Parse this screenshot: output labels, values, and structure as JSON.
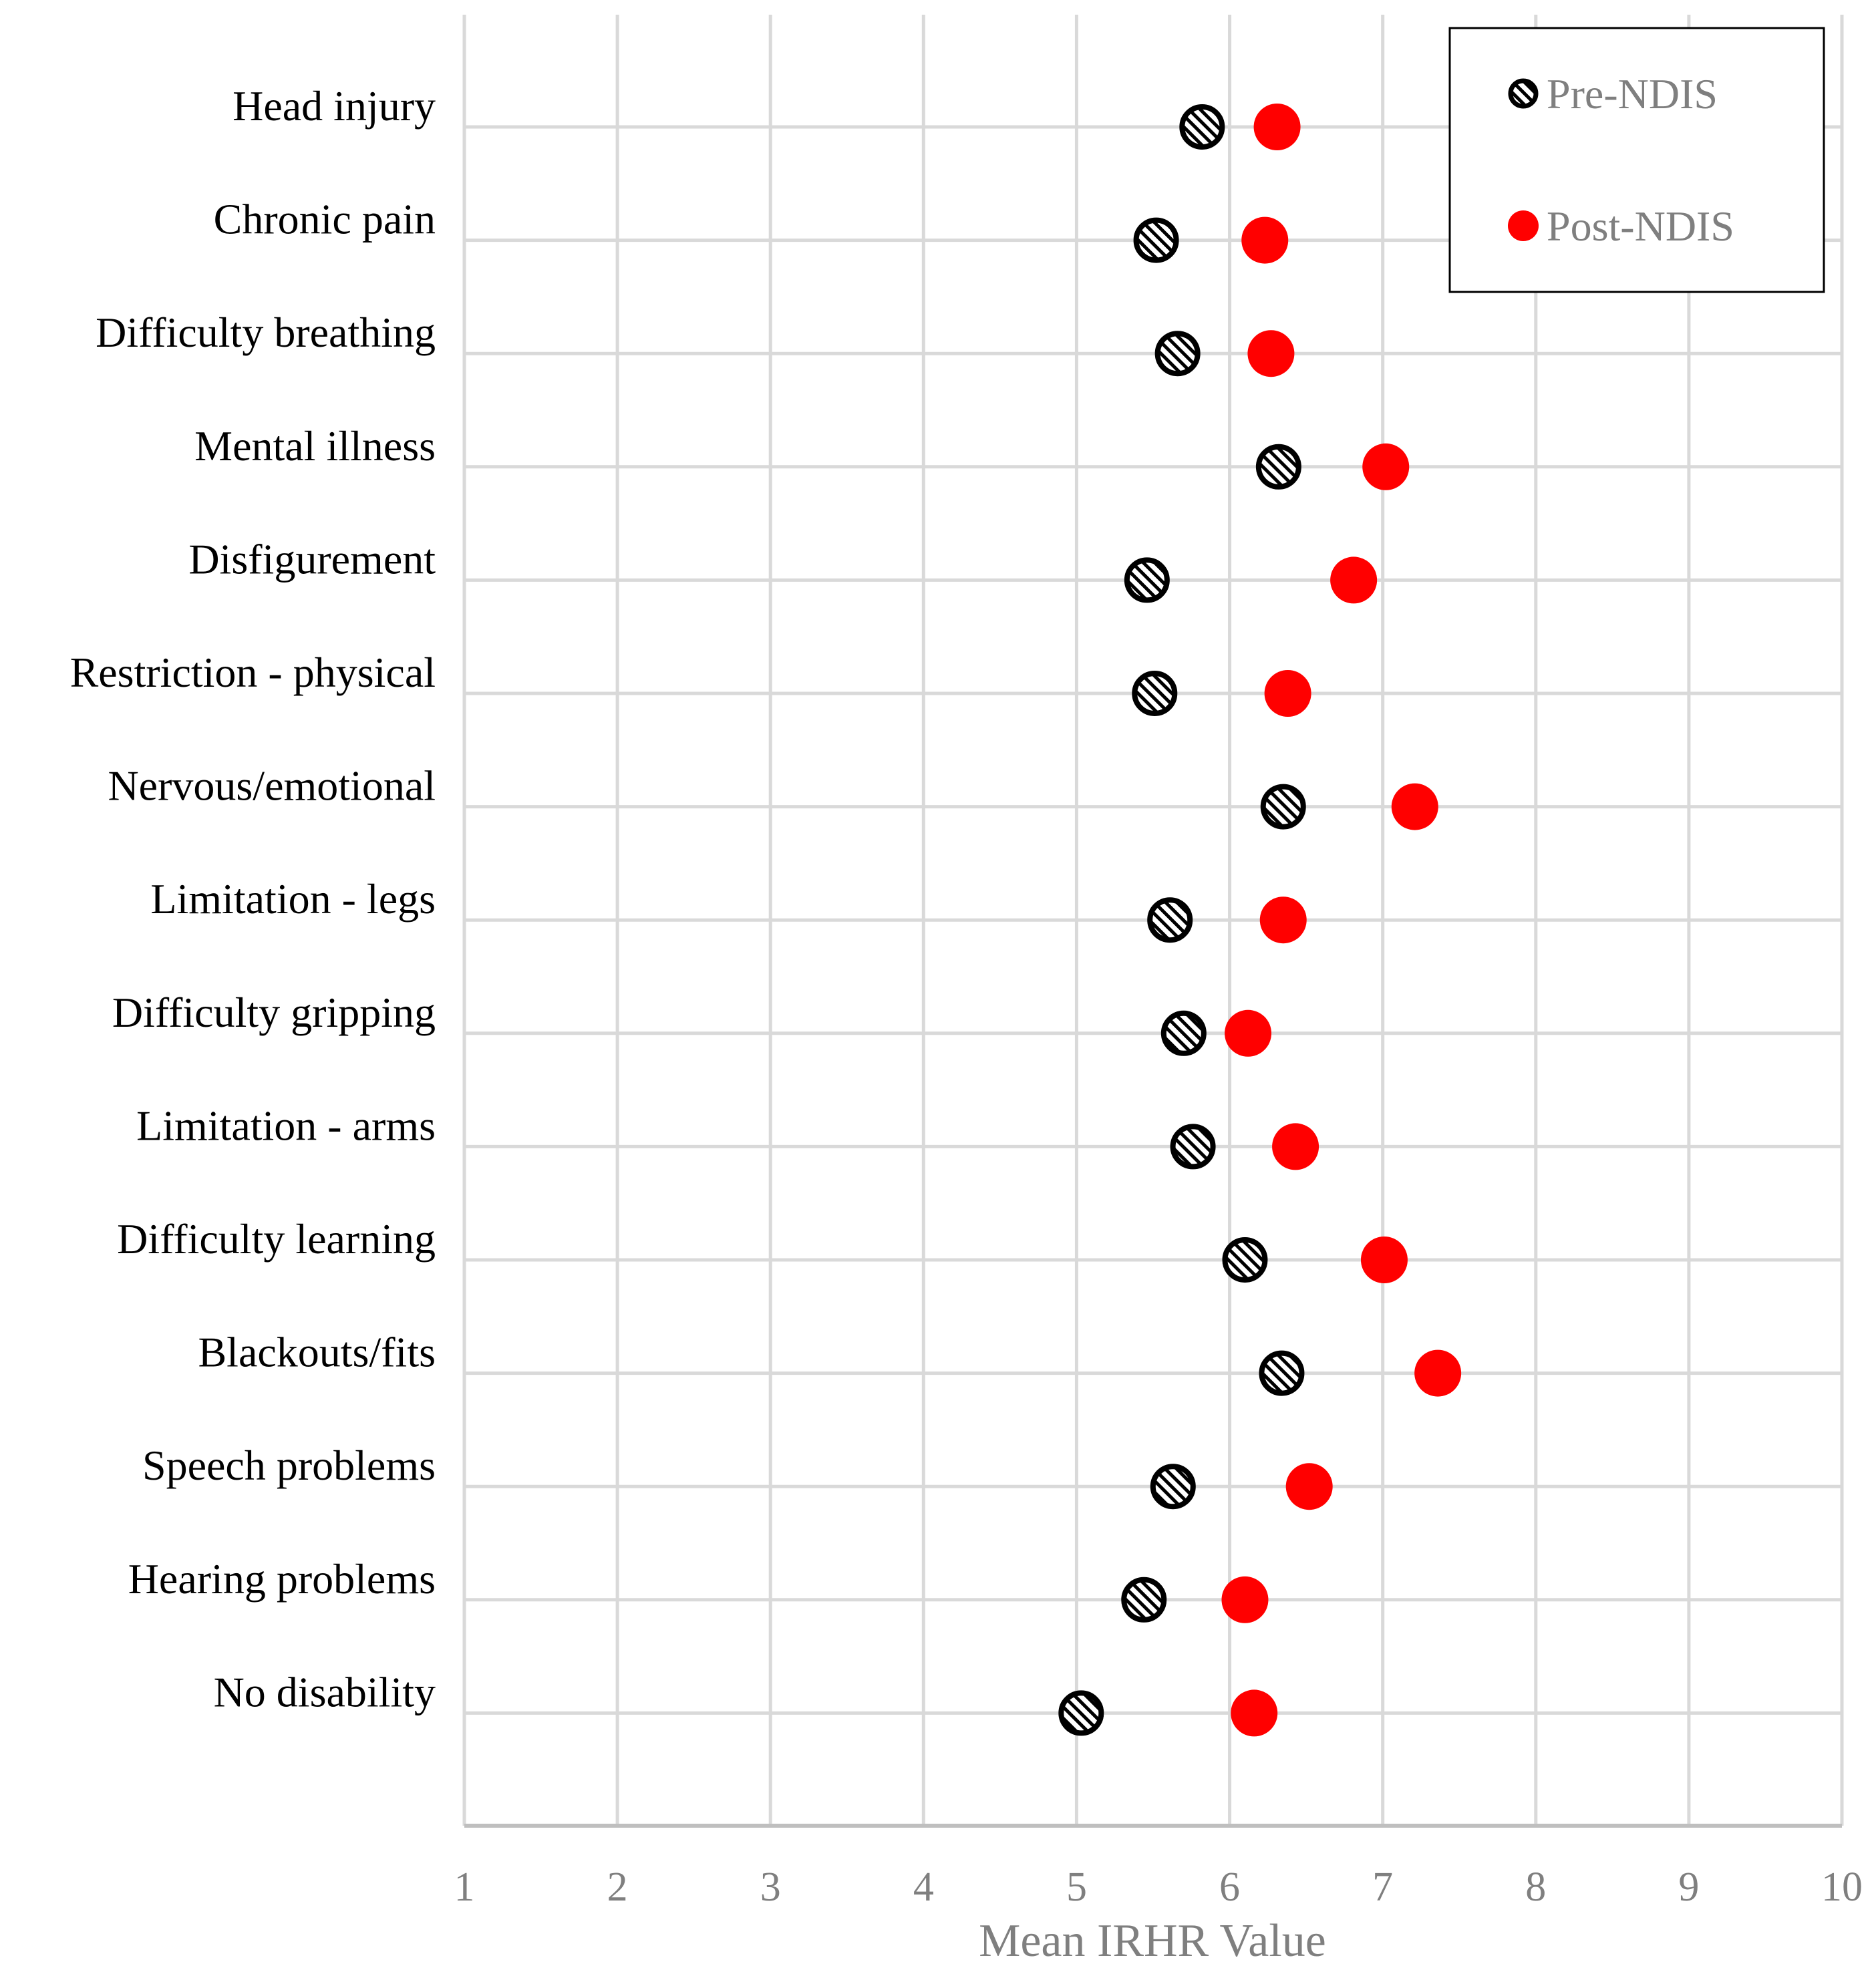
{
  "chart_data": {
    "type": "scatter",
    "orientation": "horizontal-dot-plot",
    "xlabel": "Mean IRHR Value",
    "ylabel": "",
    "xlim": [
      1,
      10
    ],
    "xticks": [
      1,
      2,
      3,
      4,
      5,
      6,
      7,
      8,
      9,
      10
    ],
    "grid": true,
    "legend_position": "top-right",
    "categories": [
      "Head injury",
      "Chronic pain",
      "Difficulty breathing",
      "Mental illness",
      "Disfigurement",
      "Restriction - physical",
      "Nervous/emotional",
      "Limitation - legs",
      "Difficulty gripping",
      "Limitation - arms",
      "Difficulty learning",
      "Blackouts/fits",
      "Speech problems",
      "Hearing problems",
      "No disability"
    ],
    "series": [
      {
        "name": "Pre-NDIS",
        "marker": "hatched-circle",
        "color": "#000000",
        "values": [
          5.82,
          5.52,
          5.66,
          6.32,
          5.46,
          5.51,
          6.35,
          5.61,
          5.7,
          5.76,
          6.1,
          6.34,
          5.63,
          5.44,
          5.03
        ]
      },
      {
        "name": "Post-NDIS",
        "marker": "filled-circle",
        "color": "#ff0000",
        "values": [
          6.31,
          6.23,
          6.27,
          7.02,
          6.81,
          6.38,
          7.21,
          6.35,
          6.12,
          6.43,
          7.01,
          7.36,
          6.52,
          6.1,
          6.16
        ]
      }
    ]
  }
}
